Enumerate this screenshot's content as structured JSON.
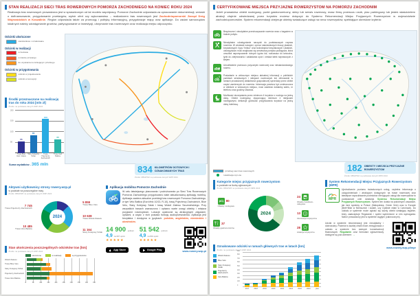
{
  "page_left": {
    "title": "STAN REALIZACJI SIECI TRAS ROWEROWYCH POMORZA ZACHODNIEGO NA KONIEC ROKU 2024",
    "intro_pre": "Realizacja tras rowerowych prowadzona jest w sprawdzonym od lat modelu współpracy. Pomorze Zachodnie odpowiada za opracowanie dokumentacji, wnioski o dofinansowanie, przygotowanie przetargów, wybór ofert czy wykonawstwo – realizatorem tras rowerowych jest ",
    "intro_highlight": "Zachodniopomorski Zarząd Dróg Wojewódzkich w Koszalinie",
    "intro_post": ". Region odpowiada także za promocję i politykę informacyjną, przygotowuje mapy oraz aplikacje. Do zadań samorządów lokalnych należy udostępnianie gruntów, partycypowanie w inwestycji, utrzymanie tras rowerowych oraz realizacja miejsc odpoczynku.",
    "route_legend": [
      {
        "title": "Odcinki ukończone",
        "items": [
          {
            "label": "standardowe i oznakowane",
            "color": "#29ABE2"
          }
        ]
      },
      {
        "title": "Odcinki w realizacji",
        "items": [
          {
            "label": "w budowie",
            "color": "#ED1C24"
          },
          {
            "label": "w trakcie przetargu",
            "color": "#F15A24"
          },
          {
            "label": "do uzyskania na istniejącym przebiegu",
            "color": "#F7941D"
          }
        ]
      },
      {
        "title": "Odcinki w przygotowaniu",
        "items": [
          {
            "label": "odcinki w projektowaniu",
            "color": "#FFDE17"
          },
          {
            "label": "odcinki w koncepcji",
            "color": "#D9E021"
          }
        ]
      }
    ],
    "badge": {
      "value": "834",
      "label": "kilometrów gotowych i oznakowanych tras",
      "source": "Źródło: RBGPWZ na podstawie danych WZP 2024"
    },
    "app": {
      "title": "Aplikacja mobilna Pomorze Zachodnie",
      "body_pre": "W celu łatwiejszego planowania i podróżowania po Sieci Tras Rowerowych Pomorza Zachodniego przygotowano stale aktualizowaną aplikację mobilną. Aplikacja zawiera aktualne przebiegi tras rowerowych Pomorza Zachodniego, w tym Velo Baltica (EuroVelo 10/13, R-10), trasę Pojezierzy Zachodnich, Blue Velo, Stary Kolejowy Szlak i trasę Wokół Zalewu Szczecińskiego. Przy wszystkich trasach zaznaczono i opisano warte uwagi obiekty i miejsca przyjazne rowerzystom. Lokacje opatrzone są atrakcyjnymi zdjęciami, opisami, a część z nich posiada funkcję audioprzewodnika. Aplikacja jest bezpłatna i dostępna w językach: ",
      "body_highlight": "polskim, angielskim, niemieckim i ukraińskim.",
      "stores": [
        {
          "downloads": "14 900",
          "downloads_unit": "pobrań",
          "rating": "4,9",
          "rating_note": "na 607 opinii",
          "stars": "★★★★★",
          "store_label": "App Store",
          "store_icon": "apple-icon"
        },
        {
          "downloads": "51 542",
          "downloads_unit": "pobrań",
          "rating": "4,9",
          "rating_note": "na 801 opinii",
          "stars": "★★★★★",
          "store_label": "Google Play",
          "store_icon": "google-play-icon"
        }
      ],
      "url": "www.rowery.wzp.pl"
    }
  },
  "page_right": {
    "title": "CERTYFIKOWANE MIEJSCA PRZYJAZNE ROWERZYSTOM NA POMORZU ZACHODNIM",
    "intro": "Jeżeli prowadzisz obiekt noclegowy, punkt gastronomiczny, sklep lub serwis rowerowy, masz firmę przewozu osób, plac parkingowy lub jesteś właścicielem atrakcji chętnie odwiedzanej przez turystów możesz dołączyć do Systemu Rekomendacji Miejsc Przyjaznych Rowerzystom w województwie zachodniopomorskim. System rekomendacji obejmuje obiekty świadczące usługi na rzecz rowerzystów, spełniające określone kryteria:",
    "criteria": [
      {
        "icon": "bike-parking-icon",
        "text": "Bezpieczne i nieodpłatne przechowywanie rowerów wraz z bagażem w trakcie pobytu."
      },
      {
        "icon": "tools-icon",
        "text": "Nieodpłatne udostępnianie narzędzi do podstawowych napraw rowerów. W zestawie narzędzi, oprócz standardowych kluczy płaskich, krzyżakowych i typu \"imbus\" oraz śrubokrętów krzyżakowych i płaskich, obowiązkowo musi znajdować się serwisowa pompka podłogowa, która umożliwi napompowanie różnych typów kół, rozkuwacz do łańcucha, łyżki do zdejmowania i zakładania opon i zestaw łatek naprawczych z klejem."
      },
      {
        "icon": "bike-trailer-icon",
        "text": "Umożliwienie przewozu przyczepki rowerowej oraz niestandardowego roweru."
      },
      {
        "icon": "bike-info-icon",
        "text": "Posiadanie w widocznym miejscu aktualnej informacji o pobliskich punktach serwisowych i sklepach rowerowych lub oferowanie w ramach prowadzonej działalności gospodarczej sprzedaży przez obiekt części zamiennych do rowerów. Informacja powinna być umieszczona w obiekcie w widocznym miejscu, musi zawierać dokładny adres, nr telefonu oraz godziny otwarcia."
      },
      {
        "icon": "night-stay-icon",
        "text": "Możliwość skorzystania przez minimum 4 turystów z noclegu na jedną dobę. Obiekt noclegowy, dysponujący minimum 4 miejscami noclegowymi, deklaruje gotowość przyjmowania turystów na jedną dobę hotelową."
      }
    ],
    "map_legend": [
      {
        "type": "line",
        "label": "przebieg sieci tras rowerowych"
      },
      {
        "type": "dot",
        "label": "lokalizacja mpr-ów"
      }
    ],
    "badge": {
      "value": "182",
      "label": "obiekty i miejsca przyjazne rowerzystom",
      "source": "Źródło: RBGPWZ na podstawie danych MPR 2024"
    },
    "mpr": {
      "title": "System Rekomendacji Miejsc Przyjaznych Rowerzystom (MPR)",
      "logo_label": "MPR",
      "text1_pre": "Ujednolicenie poziomu świadczonych usług, czytelna informacja o udogodnieniach i atrakcjach dostępnych na trasie rowerowej oraz łatwiejsze wyszukiwanie podmiotów oferujących usługi dla rowerzystów to podstawowe cele działania ",
      "text1_highlight": "Systemu Rekomendacji Miejsc Przyjaznych Rowerzystom",
      "text1_post": ". System ten działa na podobnych zasadach, jak inne systemy w Polsce (Małopolska, Green Velo) oraz w Europie (Bett+Bike w Niemczech i Austrii, czy Cyklisté vítáni w Czechach). Do udziału w systemie może zgłosić się każdy obiekt działający legalnie, który zaakceptuje Regulamin i spełni wymienione w nim wymagania. Nabór prowadzony jest w systemie ciągłym (całorocznym).",
      "text2_pre": "Udział w systemie rekomendacji jest nieodpłatny i dobrowolny. Podmiot w każdej chwili może zrezygnować z udziału w systemie bez żadnych konsekwencji finansowych. ",
      "text2_highlight": "Regulamin",
      "text2_post": " oraz formularz zgłoszeniowy dostępne są pod adresem:",
      "arrow": "→",
      "url": "www.rowery.wzp.pl/mpr"
    }
  },
  "colors": {
    "accent_blue": "#1B75BC",
    "light_blue": "#29ABE2",
    "title_red": "#B01F24",
    "callout_red": "#C1272D",
    "green": "#39A935",
    "orange": "#F7941D"
  },
  "chart_data": [
    {
      "id": "funds",
      "type": "bar",
      "title": "Środki przeznaczone na realizację tras do roku 2024 [mln zł]",
      "source": "Źródło: na podstawie danych WZP 2024",
      "categories": [
        "Trasa Blue Velo i Zalew",
        "Stary Kolejowy Szlak",
        "Trasa Pojezierzy Zachodnich",
        "Trasa Velo Baltica"
      ],
      "values": [
        55,
        85,
        160,
        65
      ],
      "colors": [
        "#2E3192",
        "#1B75BC",
        "#29ABE2",
        "#2BB5A9"
      ],
      "ylim": [
        0,
        200
      ],
      "gridstep": 50,
      "total_label": "Suma wydatków - ",
      "total_value": "365 mln"
    },
    {
      "id": "site_users",
      "type": "pie",
      "title": "Aktywni użytkownicy strony rowery.wzp.pl",
      "subtitle": "w podziale na poszczególne trasy",
      "source": "Źródło: RBGPWZ na podstawie danych WZP 2024",
      "center_label": "2024",
      "center_color": "#1B75BC",
      "slices": [
        {
          "label": "Trasa Blue Velo",
          "value": 5859,
          "display": "5 859",
          "color": "#2E3192",
          "side": "right",
          "callout_order": 1
        },
        {
          "label": "Trasa Wokół Zalewu",
          "value": 10638,
          "display": "10 638",
          "color": "#29ABE2",
          "side": "right",
          "callout_order": 2
        },
        {
          "label": "Stary Kolejowy Szlak",
          "value": 11164,
          "display": "11 164",
          "color": "#8DC63F",
          "side": "right",
          "callout_order": 3
        },
        {
          "label": "Trasa Velo Baltica",
          "value": 10485,
          "display": "10 485",
          "color": "#009444",
          "side": "left",
          "callout_order": 2
        },
        {
          "label": "Trasa Pojezierzy Zachodnich",
          "value": 7745,
          "display": "7 745",
          "color": "#00A79D",
          "side": "left",
          "callout_order": 1
        }
      ]
    },
    {
      "id": "completion",
      "type": "stacked-hbar",
      "title": "Stan ukończenia poszczególnych odcinków tras [km]",
      "source": "Źródło: na podstawie danych WZP 2024",
      "categories": [
        "Wokół Zalewu",
        "Trasa Blue Velo",
        "Stary Kolejowy Szlak",
        "Pojezierzy Zachodnich",
        "Trasa Velo Baltica"
      ],
      "series": [
        {
          "name": "ukończone",
          "color": "#2E7D46",
          "values": [
            65,
            125,
            90,
            150,
            130
          ]
        },
        {
          "name": "w realizacji",
          "color": "#A6CE39",
          "values": [
            28,
            0,
            10,
            0,
            0
          ]
        },
        {
          "name": "w przygotowaniu",
          "color": "#F7941D",
          "values": [
            10,
            30,
            60,
            280,
            20
          ]
        }
      ],
      "xlim": [
        0,
        450
      ],
      "gridstep": 50
    },
    {
      "id": "mpr_categories",
      "type": "pie",
      "title": "Kategorie miejsc przyjaznych rowerzystom",
      "subtitle": "w podziale na liczbę zgłoszonych",
      "source": "Źródło: RBGPWZ na podstawie danych MPR 2024",
      "center_label": "2024",
      "center_color": "#006838",
      "slices": [
        {
          "label": "Obiekty handlowo-usługowe",
          "value": 24,
          "display": "24",
          "color": "#7DC576",
          "side": "right",
          "callout_order": 1,
          "icon": "shop-icon"
        },
        {
          "label": "Informacja turystyczna",
          "value": 13,
          "display": "13",
          "color": "#A8D79C",
          "side": "right",
          "callout_order": 2,
          "icon": "info-icon"
        },
        {
          "label": "Atrakcje turystyczne",
          "value": 28,
          "display": "28",
          "color": "#C9E6BE",
          "side": "right",
          "callout_order": 3,
          "icon": "star-icon"
        },
        {
          "label": "Obiekty noclegowe",
          "value": 80,
          "display": "80",
          "color": "#006838",
          "side": "left",
          "callout_order": 1,
          "icon": "bed-icon"
        },
        {
          "label": "Obiekty gastronomiczne",
          "value": 37,
          "display": "37",
          "color": "#00A651",
          "side": "left",
          "callout_order": 2,
          "icon": "restaurant-icon"
        }
      ]
    },
    {
      "id": "yearly",
      "type": "stacked-bar",
      "title": "Oznakowane odcinki w ramach głównych tras w latach [km]",
      "source": "Źródło: na podstawie danych WZP 2024",
      "categories": [
        "2017",
        "2018",
        "2019",
        "2020",
        "2021",
        "2022",
        "2023",
        "2024",
        "plan"
      ],
      "series": [
        {
          "name": "Velo Baltica",
          "color": "#FDB913",
          "values": [
            50,
            60,
            90,
            100,
            105,
            115,
            125,
            135,
            145
          ]
        },
        {
          "name": "Pojezierzy Zachodnich",
          "color": "#00A651",
          "values": [
            15,
            25,
            60,
            95,
            120,
            165,
            190,
            210,
            235
          ]
        },
        {
          "name": "Stary Kolejowy Szlak",
          "color": "#8DC63F",
          "values": [
            0,
            0,
            25,
            60,
            75,
            95,
            110,
            120,
            135
          ]
        },
        {
          "name": "Blue Velo",
          "color": "#1B75BC",
          "values": [
            15,
            20,
            25,
            40,
            55,
            95,
            140,
            160,
            185
          ]
        },
        {
          "name": "Wokół Zalewu",
          "color": "#29ABE2",
          "values": [
            0,
            5,
            10,
            15,
            25,
            50,
            75,
            105,
            130
          ]
        }
      ],
      "ylim": [
        0,
        900
      ],
      "gridstep": 100,
      "legend_position": "left"
    }
  ]
}
